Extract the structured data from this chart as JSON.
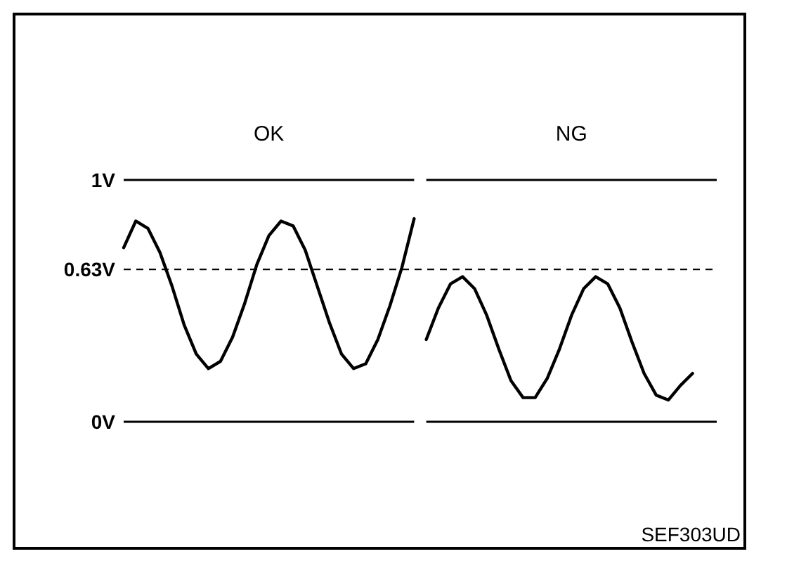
{
  "chart_data": {
    "type": "line",
    "categories": [
      null,
      null,
      null,
      null,
      null,
      null,
      null,
      null,
      null,
      null,
      null,
      null,
      null,
      null,
      null,
      null,
      null,
      null,
      null,
      null,
      null,
      null,
      null,
      null,
      null,
      null,
      null,
      null,
      null,
      null,
      null,
      null,
      null,
      null,
      null,
      null,
      null,
      null,
      null,
      null,
      null,
      null,
      null,
      null,
      null,
      null,
      null,
      null,
      null,
      null
    ],
    "series": [
      {
        "color": "#000000",
        "values": [
          0.72,
          0.83,
          0.8,
          0.7,
          0.56,
          0.4,
          0.28,
          0.22,
          0.25,
          0.35,
          0.49,
          0.65,
          0.77,
          0.83,
          0.81,
          0.71,
          0.56,
          0.41,
          0.28,
          0.22,
          0.24,
          0.34,
          0.48,
          0.64,
          0.84,
          null,
          null,
          null,
          null,
          null,
          null,
          null,
          null,
          null,
          null,
          null,
          null,
          null,
          null,
          null,
          null,
          null,
          null,
          null,
          null,
          null,
          null,
          null,
          null,
          null
        ]
      },
      {
        "color": "#000000",
        "values": [
          null,
          null,
          null,
          null,
          null,
          null,
          null,
          null,
          null,
          null,
          null,
          null,
          null,
          null,
          null,
          null,
          null,
          null,
          null,
          null,
          null,
          null,
          null,
          null,
          null,
          0.34,
          0.47,
          0.57,
          0.6,
          0.55,
          0.44,
          0.3,
          0.17,
          0.1,
          0.1,
          0.18,
          0.3,
          0.44,
          0.55,
          0.6,
          0.57,
          0.47,
          0.33,
          0.2,
          0.11,
          0.09,
          0.15,
          0.2,
          null,
          null
        ]
      }
    ],
    "ylim": [
      0,
      1
    ],
    "yticks": [
      {
        "value": 0,
        "label": "0V"
      },
      {
        "value": 0.63,
        "label": "0.63V"
      },
      {
        "value": 1,
        "label": "1V"
      }
    ],
    "grid": "y",
    "ref_lines": [
      {
        "axis": "y",
        "value": 0.63,
        "line_style": "dashed"
      }
    ],
    "marker": "none",
    "line_style": "solid",
    "annotations": [
      "OK",
      "NG",
      "SEF303UD"
    ]
  }
}
